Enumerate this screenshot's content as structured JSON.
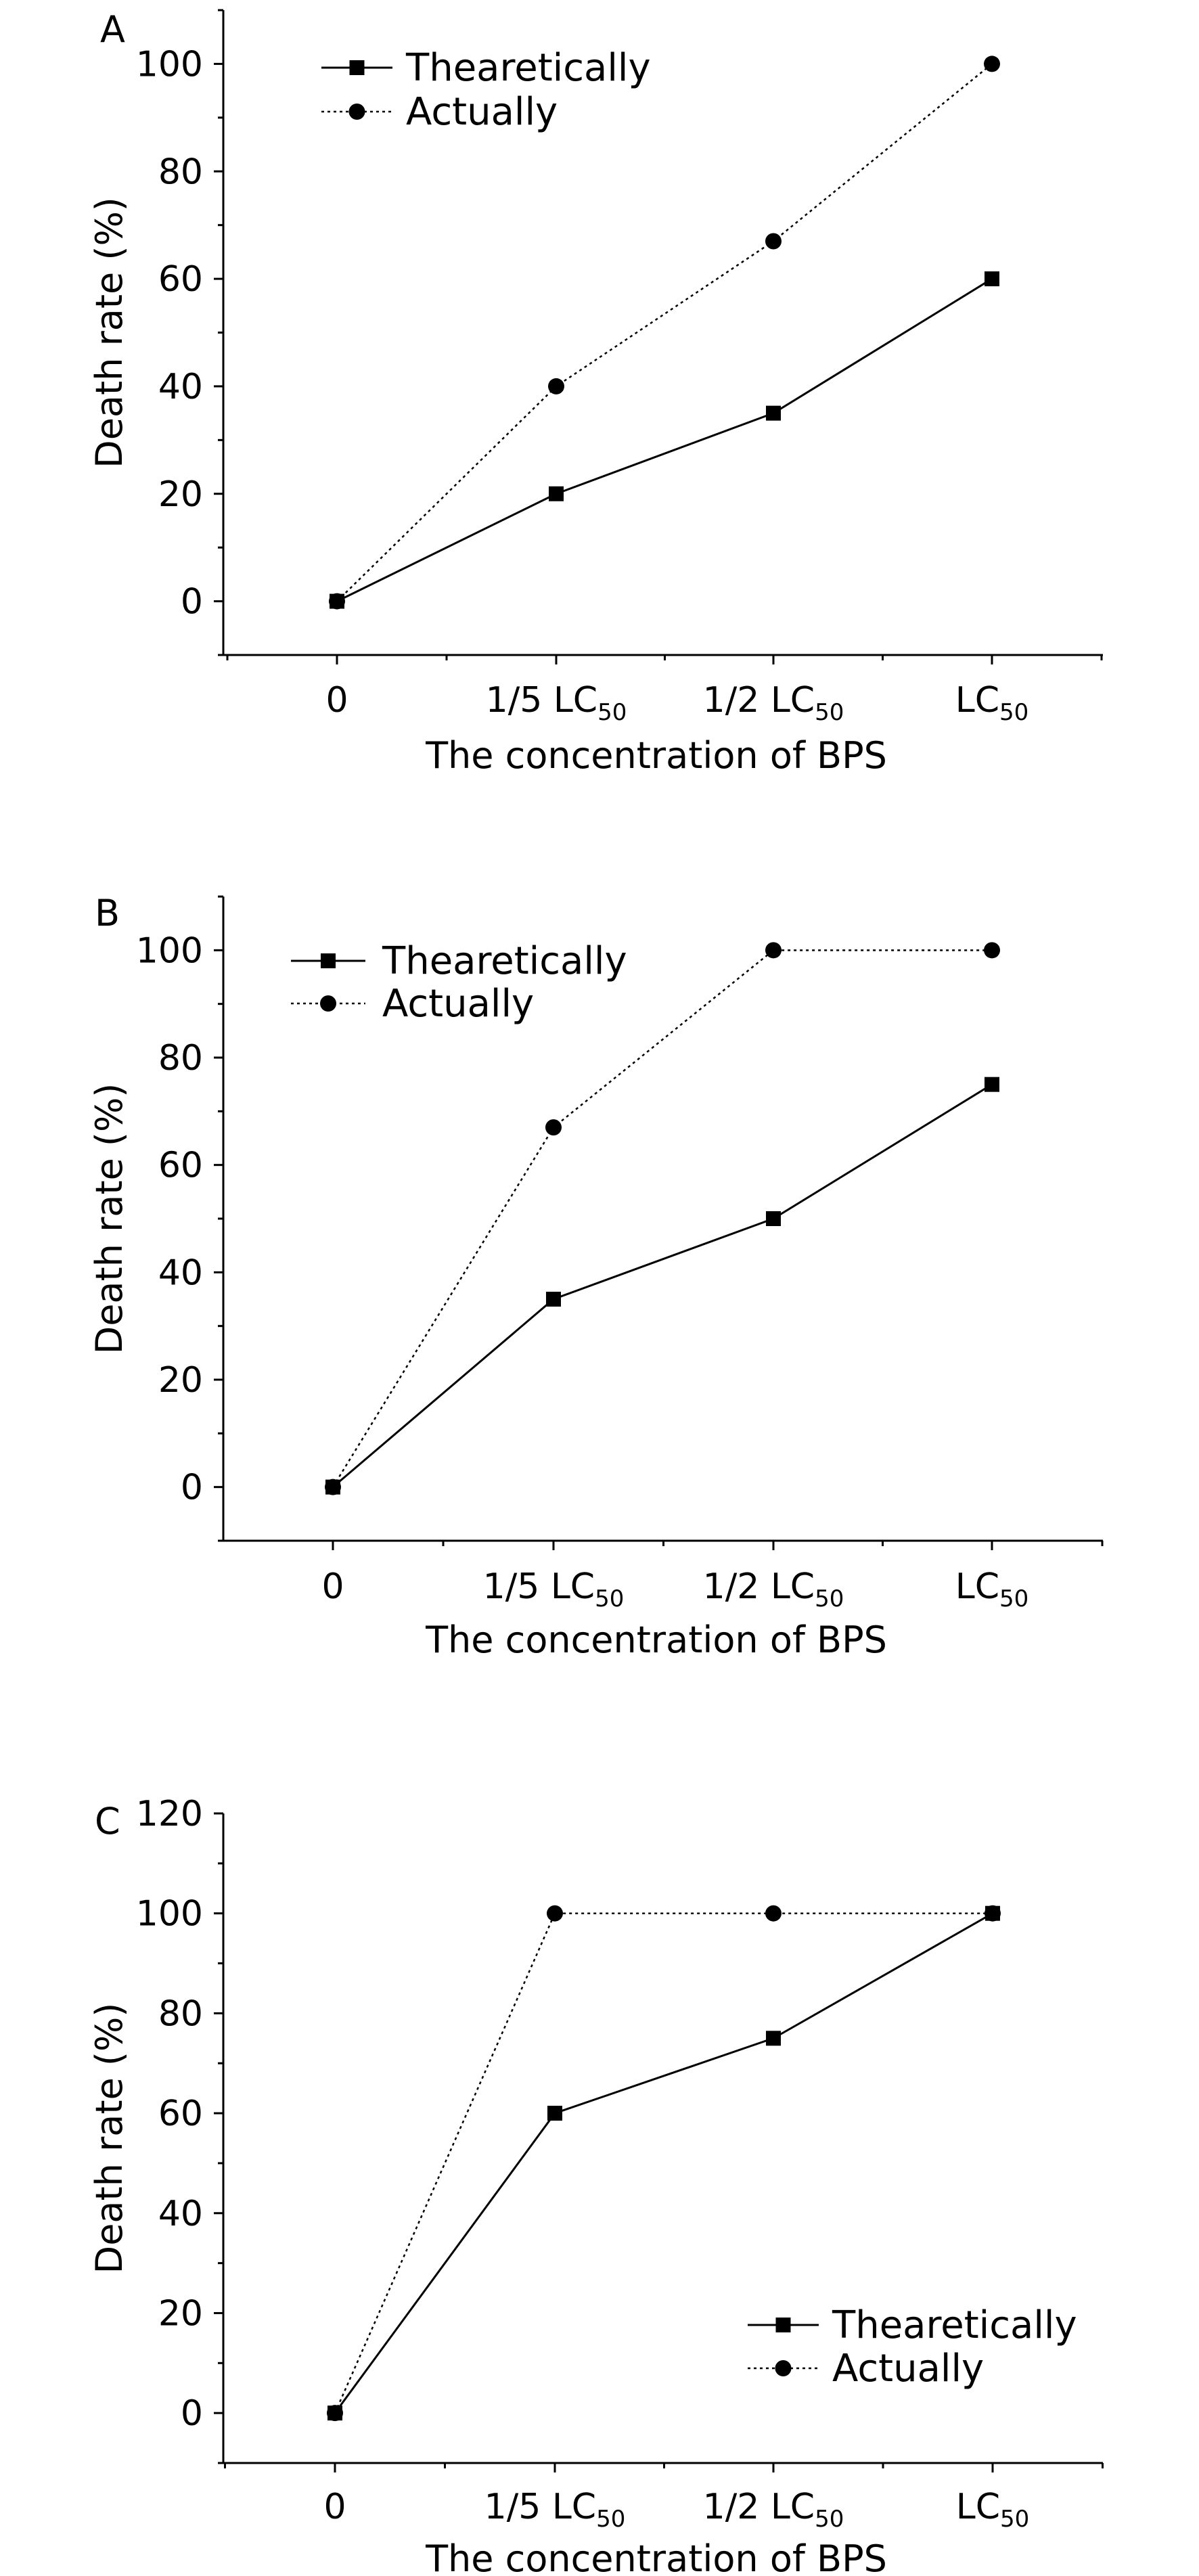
{
  "chart_data": [
    {
      "type": "line",
      "panel_label": "A",
      "categories": [
        "0",
        "1/5 LC50",
        "1/2 LC50",
        "LC50"
      ],
      "xlabel": "The concentration of BPS",
      "ylabel": "Death rate (%)",
      "ylim": [
        -10,
        110
      ],
      "yticks": [
        0,
        20,
        40,
        60,
        80,
        100
      ],
      "legend_position": "top-left",
      "series": [
        {
          "name": "Thearetically",
          "values": [
            0,
            20,
            35,
            60
          ],
          "marker": "square",
          "line": "solid"
        },
        {
          "name": "Actually",
          "values": [
            0,
            40,
            67,
            100
          ],
          "marker": "circle",
          "line": "dotted"
        }
      ]
    },
    {
      "type": "line",
      "panel_label": "B",
      "categories": [
        "0",
        "1/5 LC50",
        "1/2 LC50",
        "LC50"
      ],
      "xlabel": "The concentration of BPS",
      "ylabel": "Death rate (%)",
      "ylim": [
        -10,
        110
      ],
      "yticks": [
        0,
        20,
        40,
        60,
        80,
        100
      ],
      "legend_position": "top-left",
      "series": [
        {
          "name": "Thearetically",
          "values": [
            0,
            35,
            50,
            75
          ],
          "marker": "square",
          "line": "solid"
        },
        {
          "name": "Actually",
          "values": [
            0,
            67,
            100,
            100
          ],
          "marker": "circle",
          "line": "dotted"
        }
      ]
    },
    {
      "type": "line",
      "panel_label": "C",
      "categories": [
        "0",
        "1/5 LC50",
        "1/2 LC50",
        "LC50"
      ],
      "xlabel": "The concentration of BPS",
      "ylabel": "Death rate (%)",
      "ylim": [
        -10,
        120
      ],
      "yticks": [
        0,
        20,
        40,
        60,
        80,
        100,
        120
      ],
      "legend_position": "bottom-right",
      "series": [
        {
          "name": "Thearetically",
          "values": [
            0,
            60,
            75,
            100
          ],
          "marker": "square",
          "line": "solid"
        },
        {
          "name": "Actually",
          "values": [
            0,
            100,
            100,
            100
          ],
          "marker": "circle",
          "line": "dotted"
        }
      ]
    }
  ]
}
